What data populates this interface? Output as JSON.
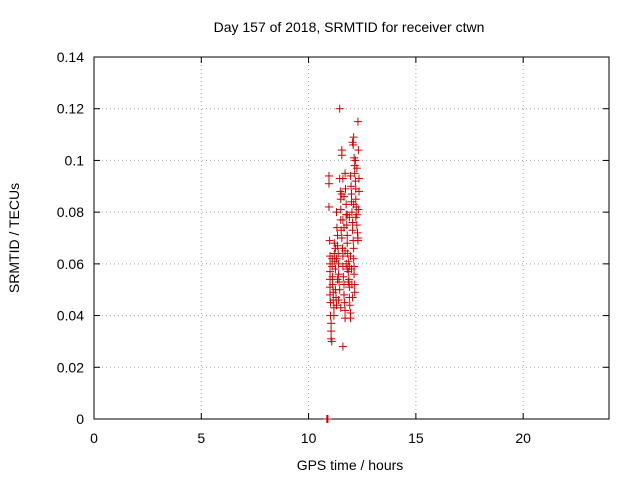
{
  "chart_data": {
    "type": "scatter",
    "title": "Day 157 of 2018, SRMTID for receiver ctwn",
    "xlabel": "GPS time / hours",
    "ylabel": "SRMTID / TECUs",
    "xlim": [
      0,
      24
    ],
    "ylim": [
      0,
      0.14
    ],
    "xticks": [
      0,
      5,
      10,
      15,
      20
    ],
    "yticks": [
      0,
      0.02,
      0.04,
      0.06,
      0.08,
      0.1,
      0.12,
      0.14
    ],
    "grid": true,
    "legend": "none",
    "colors": {
      "series": "#cc0000",
      "grid": "#a0a0a0",
      "axes": "#000000"
    },
    "series": [
      {
        "marker": "plus",
        "points": [
          [
            10.85,
            0.0
          ],
          [
            10.88,
            0.0
          ],
          [
            10.9,
            0.0
          ],
          [
            10.95,
            0.094
          ],
          [
            10.95,
            0.091
          ],
          [
            10.95,
            0.082
          ],
          [
            10.98,
            0.069
          ],
          [
            11.0,
            0.063
          ],
          [
            11.0,
            0.06
          ],
          [
            11.0,
            0.057
          ],
          [
            11.0,
            0.054
          ],
          [
            11.0,
            0.051
          ],
          [
            11.0,
            0.048
          ],
          [
            11.02,
            0.045
          ],
          [
            11.02,
            0.04
          ],
          [
            11.05,
            0.037
          ],
          [
            11.05,
            0.034
          ],
          [
            11.05,
            0.031
          ],
          [
            11.08,
            0.03
          ],
          [
            11.1,
            0.062
          ],
          [
            11.1,
            0.059
          ],
          [
            11.12,
            0.055
          ],
          [
            11.12,
            0.052
          ],
          [
            11.15,
            0.049
          ],
          [
            11.15,
            0.046
          ],
          [
            11.18,
            0.043
          ],
          [
            11.18,
            0.04
          ],
          [
            11.2,
            0.068
          ],
          [
            11.2,
            0.064
          ],
          [
            11.22,
            0.061
          ],
          [
            11.25,
            0.058
          ],
          [
            11.25,
            0.05
          ],
          [
            11.28,
            0.047
          ],
          [
            11.3,
            0.044
          ],
          [
            11.3,
            0.08
          ],
          [
            11.32,
            0.074
          ],
          [
            11.35,
            0.071
          ],
          [
            11.35,
            0.067
          ],
          [
            11.38,
            0.064
          ],
          [
            11.4,
            0.06
          ],
          [
            11.4,
            0.056
          ],
          [
            11.42,
            0.053
          ],
          [
            11.45,
            0.05
          ],
          [
            11.45,
            0.12
          ],
          [
            11.45,
            0.093
          ],
          [
            11.48,
            0.088
          ],
          [
            11.5,
            0.085
          ],
          [
            11.5,
            0.081
          ],
          [
            11.5,
            0.077
          ],
          [
            11.52,
            0.073
          ],
          [
            11.55,
            0.104
          ],
          [
            11.55,
            0.102
          ],
          [
            11.55,
            0.07
          ],
          [
            11.58,
            0.066
          ],
          [
            11.6,
            0.063
          ],
          [
            11.6,
            0.059
          ],
          [
            11.6,
            0.028
          ],
          [
            11.62,
            0.055
          ],
          [
            11.65,
            0.052
          ],
          [
            11.65,
            0.048
          ],
          [
            11.68,
            0.045
          ],
          [
            11.7,
            0.042
          ],
          [
            11.7,
            0.039
          ],
          [
            11.7,
            0.095
          ],
          [
            11.72,
            0.089
          ],
          [
            11.75,
            0.083
          ],
          [
            11.75,
            0.079
          ],
          [
            11.78,
            0.075
          ],
          [
            11.8,
            0.071
          ],
          [
            11.8,
            0.068
          ],
          [
            11.82,
            0.064
          ],
          [
            11.85,
            0.061
          ],
          [
            11.85,
            0.057
          ],
          [
            11.88,
            0.054
          ],
          [
            11.9,
            0.051
          ],
          [
            11.9,
            0.047
          ],
          [
            11.92,
            0.044
          ],
          [
            11.95,
            0.041
          ],
          [
            11.95,
            0.039
          ],
          [
            11.95,
            0.094
          ],
          [
            11.98,
            0.09
          ],
          [
            12.0,
            0.087
          ],
          [
            12.0,
            0.084
          ],
          [
            12.02,
            0.08
          ],
          [
            12.05,
            0.076
          ],
          [
            12.05,
            0.073
          ],
          [
            12.08,
            0.069
          ],
          [
            12.1,
            0.066
          ],
          [
            12.1,
            0.062
          ],
          [
            12.12,
            0.059
          ],
          [
            12.12,
            0.056
          ],
          [
            12.15,
            0.052
          ],
          [
            12.15,
            0.049
          ],
          [
            12.05,
            0.107
          ],
          [
            12.08,
            0.106
          ],
          [
            12.1,
            0.109
          ],
          [
            12.12,
            0.101
          ],
          [
            12.15,
            0.098
          ],
          [
            12.15,
            0.095
          ],
          [
            12.18,
            0.092
          ],
          [
            12.2,
            0.089
          ],
          [
            12.2,
            0.085
          ],
          [
            12.22,
            0.082
          ],
          [
            12.25,
            0.079
          ],
          [
            12.25,
            0.075
          ],
          [
            12.28,
            0.072
          ],
          [
            12.3,
            0.069
          ],
          [
            12.3,
            0.115
          ],
          [
            12.32,
            0.104
          ],
          [
            12.35,
            0.093
          ],
          [
            12.35,
            0.088
          ],
          [
            12.32,
            0.081
          ],
          [
            12.3,
            0.07
          ],
          [
            11.6,
            0.077
          ],
          [
            11.65,
            0.074
          ],
          [
            11.7,
            0.065
          ],
          [
            11.75,
            0.06
          ],
          [
            11.8,
            0.058
          ],
          [
            11.85,
            0.053
          ],
          [
            11.9,
            0.059
          ],
          [
            11.95,
            0.063
          ],
          [
            12.0,
            0.058
          ],
          [
            12.02,
            0.052
          ],
          [
            12.05,
            0.047
          ],
          [
            11.5,
            0.043
          ],
          [
            11.4,
            0.046
          ],
          [
            11.3,
            0.062
          ],
          [
            11.25,
            0.066
          ],
          [
            11.35,
            0.054
          ],
          [
            11.55,
            0.087
          ],
          [
            11.6,
            0.093
          ],
          [
            11.65,
            0.086
          ],
          [
            11.8,
            0.079
          ],
          [
            11.9,
            0.078
          ],
          [
            12.1,
            0.083
          ],
          [
            12.2,
            0.078
          ],
          [
            12.25,
            0.097
          ],
          [
            12.18,
            0.1
          ]
        ]
      }
    ]
  }
}
